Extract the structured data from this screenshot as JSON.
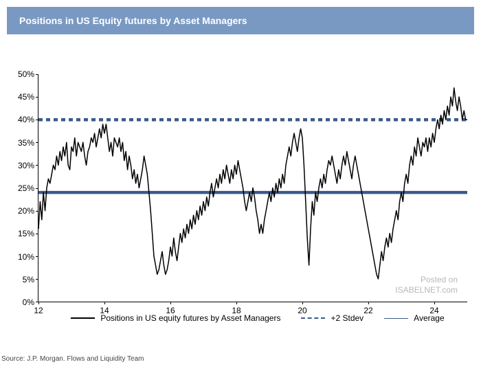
{
  "title": "Positions in US Equity futures by Asset Managers",
  "source": "Source: J.P. Morgan. Flows and Liquidity Team",
  "watermark": {
    "line1": "Posted on",
    "line2": "ISABELNET.com"
  },
  "chart": {
    "type": "line",
    "background_color": "#ffffff",
    "title_bar_color": "#7a99c2",
    "title_text_color": "#ffffff",
    "title_fontsize": 14,
    "label_fontsize": 12,
    "axis_color": "#000000",
    "x": {
      "min": 12,
      "max": 25,
      "ticks": [
        12,
        14,
        16,
        18,
        20,
        22,
        24
      ],
      "tick_labels": [
        "12",
        "14",
        "16",
        "18",
        "20",
        "22",
        "24"
      ]
    },
    "y": {
      "min": 0,
      "max": 50,
      "ticks": [
        0,
        5,
        10,
        15,
        20,
        25,
        30,
        35,
        40,
        45,
        50
      ],
      "tick_labels": [
        "0%",
        "5%",
        "10%",
        "15%",
        "20%",
        "25%",
        "30%",
        "35%",
        "40%",
        "45%",
        "50%"
      ]
    },
    "reference_lines": [
      {
        "label": "+2 Stdev",
        "value": 40,
        "color": "#3a5a8a",
        "style": "dashed",
        "width": 1.5,
        "dash": "6,5"
      },
      {
        "label": "Average",
        "value": 24,
        "color": "#3a5a8a",
        "style": "solid",
        "width": 1.5
      }
    ],
    "series": {
      "label": "Positions in US equity futures by Asset Managers",
      "color": "#000000",
      "width": 1.5,
      "data": [
        [
          12.0,
          16
        ],
        [
          12.05,
          22
        ],
        [
          12.1,
          18
        ],
        [
          12.15,
          24
        ],
        [
          12.2,
          20
        ],
        [
          12.25,
          25
        ],
        [
          12.3,
          27
        ],
        [
          12.35,
          26
        ],
        [
          12.4,
          28
        ],
        [
          12.45,
          30
        ],
        [
          12.5,
          29
        ],
        [
          12.55,
          32
        ],
        [
          12.6,
          30
        ],
        [
          12.65,
          33
        ],
        [
          12.7,
          31
        ],
        [
          12.75,
          34
        ],
        [
          12.8,
          32
        ],
        [
          12.85,
          35
        ],
        [
          12.9,
          30
        ],
        [
          12.95,
          29
        ],
        [
          13.0,
          34
        ],
        [
          13.05,
          33
        ],
        [
          13.1,
          36
        ],
        [
          13.15,
          32
        ],
        [
          13.2,
          35
        ],
        [
          13.25,
          34
        ],
        [
          13.3,
          33
        ],
        [
          13.35,
          35
        ],
        [
          13.4,
          32
        ],
        [
          13.45,
          30
        ],
        [
          13.5,
          33
        ],
        [
          13.55,
          34
        ],
        [
          13.6,
          36
        ],
        [
          13.65,
          35
        ],
        [
          13.7,
          37
        ],
        [
          13.75,
          34
        ],
        [
          13.8,
          36
        ],
        [
          13.85,
          38
        ],
        [
          13.9,
          36
        ],
        [
          13.95,
          39
        ],
        [
          14.0,
          37
        ],
        [
          14.05,
          39
        ],
        [
          14.1,
          36
        ],
        [
          14.15,
          33
        ],
        [
          14.2,
          35
        ],
        [
          14.25,
          32
        ],
        [
          14.3,
          36
        ],
        [
          14.35,
          35
        ],
        [
          14.4,
          34
        ],
        [
          14.45,
          36
        ],
        [
          14.5,
          33
        ],
        [
          14.55,
          35
        ],
        [
          14.6,
          31
        ],
        [
          14.65,
          33
        ],
        [
          14.7,
          29
        ],
        [
          14.75,
          32
        ],
        [
          14.8,
          30
        ],
        [
          14.85,
          27
        ],
        [
          14.9,
          29
        ],
        [
          14.95,
          26
        ],
        [
          15.0,
          28
        ],
        [
          15.05,
          25
        ],
        [
          15.1,
          27
        ],
        [
          15.15,
          29
        ],
        [
          15.2,
          32
        ],
        [
          15.25,
          30
        ],
        [
          15.3,
          28
        ],
        [
          15.35,
          24
        ],
        [
          15.4,
          20
        ],
        [
          15.45,
          15
        ],
        [
          15.5,
          10
        ],
        [
          15.55,
          8
        ],
        [
          15.6,
          6
        ],
        [
          15.65,
          7
        ],
        [
          15.7,
          9
        ],
        [
          15.75,
          11
        ],
        [
          15.8,
          8
        ],
        [
          15.85,
          6
        ],
        [
          15.9,
          7
        ],
        [
          15.95,
          9
        ],
        [
          16.0,
          12
        ],
        [
          16.05,
          10
        ],
        [
          16.1,
          14
        ],
        [
          16.15,
          11
        ],
        [
          16.2,
          9
        ],
        [
          16.25,
          12
        ],
        [
          16.3,
          15
        ],
        [
          16.35,
          13
        ],
        [
          16.4,
          16
        ],
        [
          16.45,
          14
        ],
        [
          16.5,
          17
        ],
        [
          16.55,
          15
        ],
        [
          16.6,
          18
        ],
        [
          16.65,
          16
        ],
        [
          16.7,
          19
        ],
        [
          16.75,
          17
        ],
        [
          16.8,
          20
        ],
        [
          16.85,
          18
        ],
        [
          16.9,
          21
        ],
        [
          16.95,
          19
        ],
        [
          17.0,
          22
        ],
        [
          17.05,
          20
        ],
        [
          17.1,
          23
        ],
        [
          17.15,
          21
        ],
        [
          17.2,
          24
        ],
        [
          17.25,
          26
        ],
        [
          17.3,
          23
        ],
        [
          17.35,
          25
        ],
        [
          17.4,
          27
        ],
        [
          17.45,
          25
        ],
        [
          17.5,
          28
        ],
        [
          17.55,
          26
        ],
        [
          17.6,
          29
        ],
        [
          17.65,
          27
        ],
        [
          17.7,
          30
        ],
        [
          17.75,
          28
        ],
        [
          17.8,
          26
        ],
        [
          17.85,
          29
        ],
        [
          17.9,
          27
        ],
        [
          17.95,
          30
        ],
        [
          18.0,
          28
        ],
        [
          18.05,
          31
        ],
        [
          18.1,
          29
        ],
        [
          18.15,
          27
        ],
        [
          18.2,
          25
        ],
        [
          18.25,
          22
        ],
        [
          18.3,
          20
        ],
        [
          18.35,
          22
        ],
        [
          18.4,
          24
        ],
        [
          18.45,
          22
        ],
        [
          18.5,
          25
        ],
        [
          18.55,
          23
        ],
        [
          18.6,
          20
        ],
        [
          18.65,
          18
        ],
        [
          18.7,
          15
        ],
        [
          18.75,
          17
        ],
        [
          18.8,
          15
        ],
        [
          18.85,
          18
        ],
        [
          18.9,
          20
        ],
        [
          18.95,
          22
        ],
        [
          19.0,
          24
        ],
        [
          19.05,
          22
        ],
        [
          19.1,
          25
        ],
        [
          19.15,
          23
        ],
        [
          19.2,
          26
        ],
        [
          19.25,
          24
        ],
        [
          19.3,
          27
        ],
        [
          19.35,
          25
        ],
        [
          19.4,
          28
        ],
        [
          19.45,
          26
        ],
        [
          19.5,
          30
        ],
        [
          19.55,
          32
        ],
        [
          19.6,
          34
        ],
        [
          19.65,
          32
        ],
        [
          19.7,
          35
        ],
        [
          19.75,
          37
        ],
        [
          19.8,
          35
        ],
        [
          19.85,
          33
        ],
        [
          19.9,
          36
        ],
        [
          19.95,
          38
        ],
        [
          20.0,
          36
        ],
        [
          20.05,
          30
        ],
        [
          20.1,
          22
        ],
        [
          20.15,
          14
        ],
        [
          20.2,
          8
        ],
        [
          20.25,
          16
        ],
        [
          20.3,
          22
        ],
        [
          20.35,
          19
        ],
        [
          20.4,
          24
        ],
        [
          20.45,
          22
        ],
        [
          20.5,
          25
        ],
        [
          20.55,
          27
        ],
        [
          20.6,
          25
        ],
        [
          20.65,
          28
        ],
        [
          20.7,
          26
        ],
        [
          20.75,
          29
        ],
        [
          20.8,
          31
        ],
        [
          20.85,
          30
        ],
        [
          20.9,
          32
        ],
        [
          20.95,
          30
        ],
        [
          21.0,
          28
        ],
        [
          21.05,
          26
        ],
        [
          21.1,
          29
        ],
        [
          21.15,
          27
        ],
        [
          21.2,
          30
        ],
        [
          21.25,
          32
        ],
        [
          21.3,
          30
        ],
        [
          21.35,
          33
        ],
        [
          21.4,
          31
        ],
        [
          21.45,
          29
        ],
        [
          21.5,
          27
        ],
        [
          21.55,
          30
        ],
        [
          21.6,
          32
        ],
        [
          21.65,
          30
        ],
        [
          21.7,
          28
        ],
        [
          21.75,
          26
        ],
        [
          21.8,
          24
        ],
        [
          21.85,
          22
        ],
        [
          21.9,
          20
        ],
        [
          21.95,
          18
        ],
        [
          22.0,
          16
        ],
        [
          22.05,
          14
        ],
        [
          22.1,
          12
        ],
        [
          22.15,
          10
        ],
        [
          22.2,
          8
        ],
        [
          22.25,
          6
        ],
        [
          22.3,
          5
        ],
        [
          22.35,
          8
        ],
        [
          22.4,
          11
        ],
        [
          22.45,
          9
        ],
        [
          22.5,
          12
        ],
        [
          22.55,
          14
        ],
        [
          22.6,
          12
        ],
        [
          22.65,
          15
        ],
        [
          22.7,
          13
        ],
        [
          22.75,
          16
        ],
        [
          22.8,
          18
        ],
        [
          22.85,
          20
        ],
        [
          22.9,
          18
        ],
        [
          22.95,
          22
        ],
        [
          23.0,
          24
        ],
        [
          23.05,
          22
        ],
        [
          23.1,
          26
        ],
        [
          23.15,
          28
        ],
        [
          23.2,
          26
        ],
        [
          23.25,
          30
        ],
        [
          23.3,
          32
        ],
        [
          23.35,
          30
        ],
        [
          23.4,
          34
        ],
        [
          23.45,
          32
        ],
        [
          23.5,
          36
        ],
        [
          23.55,
          34
        ],
        [
          23.6,
          32
        ],
        [
          23.65,
          35
        ],
        [
          23.7,
          34
        ],
        [
          23.75,
          36
        ],
        [
          23.8,
          33
        ],
        [
          23.85,
          36
        ],
        [
          23.9,
          34
        ],
        [
          23.95,
          37
        ],
        [
          24.0,
          35
        ],
        [
          24.05,
          38
        ],
        [
          24.1,
          40
        ],
        [
          24.15,
          38
        ],
        [
          24.2,
          41
        ],
        [
          24.25,
          39
        ],
        [
          24.3,
          42
        ],
        [
          24.35,
          40
        ],
        [
          24.4,
          43
        ],
        [
          24.45,
          41
        ],
        [
          24.5,
          45
        ],
        [
          24.55,
          43
        ],
        [
          24.6,
          47
        ],
        [
          24.65,
          44
        ],
        [
          24.7,
          42
        ],
        [
          24.75,
          45
        ],
        [
          24.8,
          43
        ],
        [
          24.85,
          40
        ],
        [
          24.9,
          42
        ],
        [
          24.95,
          40
        ],
        [
          25.0,
          40
        ]
      ]
    },
    "legend": {
      "items": [
        {
          "label": "Positions in US equity futures by Asset Managers",
          "swatch": "solid",
          "color": "#000000"
        },
        {
          "label": "+2 Stdev",
          "swatch": "dash",
          "color": "#3a5a8a"
        },
        {
          "label": "Average",
          "swatch": "thin",
          "color": "#3a5a8a"
        }
      ]
    }
  }
}
